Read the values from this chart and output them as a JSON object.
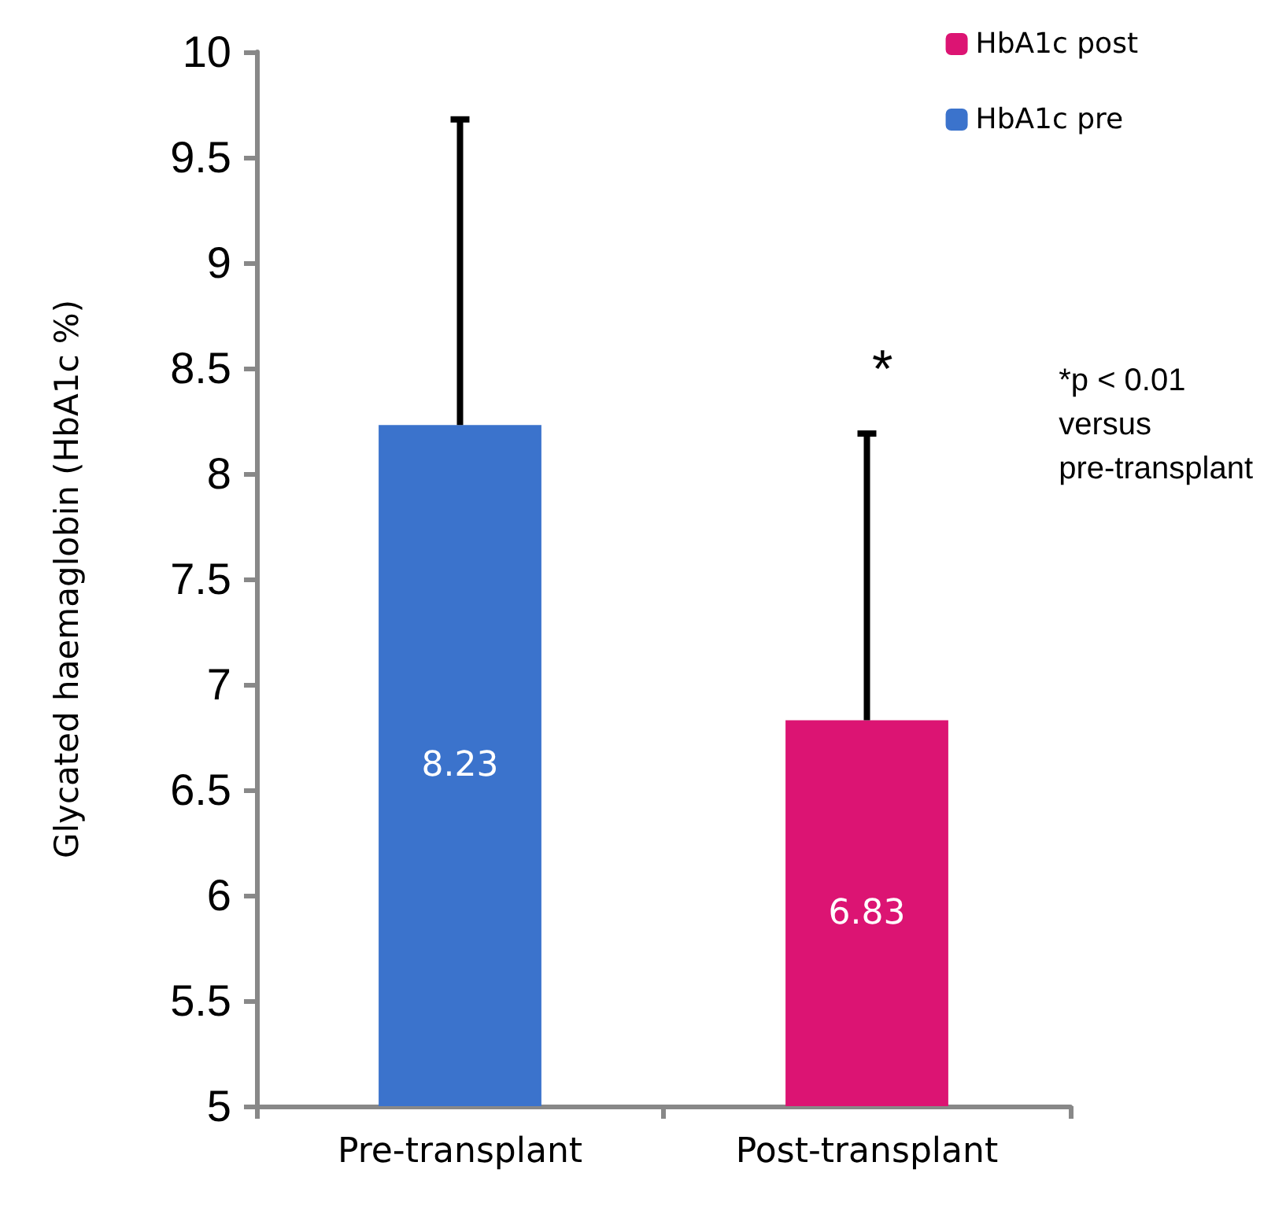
{
  "chart_data": {
    "type": "bar",
    "ylabel": "Glycated haemaglobin (HbA1c %)",
    "categories": [
      "Pre-transplant",
      "Post-transplant"
    ],
    "series": [
      {
        "name": "HbA1c post",
        "color": "#dc1473",
        "values": [
          null,
          6.83
        ],
        "errors": [
          null,
          [
            6.83,
            8.19
          ]
        ]
      },
      {
        "name": "HbA1c pre",
        "color": "#3b73cc",
        "values": [
          8.23,
          null
        ],
        "errors": [
          [
            8.23,
            9.68
          ],
          null
        ]
      }
    ],
    "ylim": [
      5,
      10
    ],
    "yticks": [
      5,
      5.5,
      6,
      6.5,
      7,
      7.5,
      8,
      8.5,
      9,
      9.5,
      10
    ],
    "grid": false,
    "legend": "top right",
    "data_labels": true,
    "annotations": [
      "*",
      "*p < 0.01\nversus\npre-transplant"
    ]
  }
}
